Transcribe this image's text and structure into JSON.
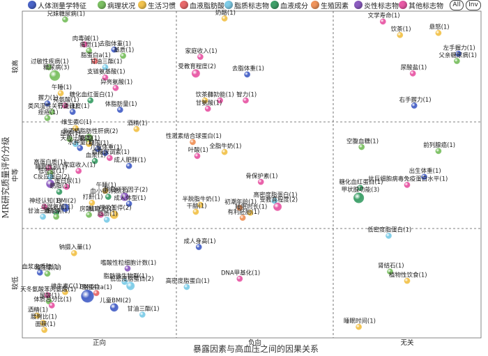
{
  "legend": {
    "items": [
      {
        "label": "人体测量学特征",
        "color": "#4a64c8"
      },
      {
        "label": "病理状况",
        "color": "#7cc063"
      },
      {
        "label": "生活习惯",
        "color": "#f2c34e"
      },
      {
        "label": "血液脂肪酸",
        "color": "#e8696b"
      },
      {
        "label": "脂质标志物",
        "color": "#7fcde8"
      },
      {
        "label": "血液成分",
        "color": "#3fa06a"
      },
      {
        "label": "生殖因素",
        "color": "#f0945c"
      },
      {
        "label": "炎性标志物",
        "color": "#8c5cc0"
      },
      {
        "label": "其他标志物",
        "color": "#e85aa6"
      }
    ],
    "all_label": "All",
    "inv_label": "Inv"
  },
  "chart_data": {
    "type": "scatter",
    "xlabel": "暴露因素与高血压之间的因果关系",
    "ylabel": "MR研究质量评价分级",
    "x_categories": [
      "正向",
      "负向",
      "无关"
    ],
    "y_categories": [
      "较高",
      "中等",
      "较低"
    ],
    "grid": "dashed",
    "points": [
      {
        "label": "兄妹糖尿病(1)",
        "group": "病理状况",
        "x": "正向",
        "y": "较高",
        "fx": 0.27,
        "fy": 0.04
      },
      {
        "label": "肉毒碱(1)",
        "group": "其他标志物",
        "x": "正向",
        "y": "较高",
        "fx": 0.4,
        "fy": 0.28
      },
      {
        "label": "痛觉(1)",
        "group": "病理状况",
        "x": "正向",
        "y": "较高",
        "fx": 0.43,
        "fy": 0.34
      },
      {
        "label": "脂蛋白a(1)",
        "group": "血液脂肪酸",
        "x": "正向",
        "y": "较高",
        "fx": 0.47,
        "fy": 0.44
      },
      {
        "label": "甘油三酯(1)",
        "group": "脂质标志物",
        "x": "正向",
        "y": "较高",
        "fx": 0.54,
        "fy": 0.5
      },
      {
        "label": "去脂体重(1)",
        "group": "人体测量学特征",
        "x": "正向",
        "y": "较高",
        "fx": 0.6,
        "fy": 0.33
      },
      {
        "label": "基质(1)",
        "group": "病理状况",
        "x": "正向",
        "y": "较高",
        "fx": 0.66,
        "fy": 0.39
      },
      {
        "label": "过敏性疾病(1)",
        "group": "病理状况",
        "x": "正向",
        "y": "较高",
        "fx": 0.16,
        "fy": 0.5
      },
      {
        "label": "糖尿病(3)",
        "group": "病理状况",
        "x": "正向",
        "y": "较高",
        "fx": 0.2,
        "fy": 0.58
      },
      {
        "label": "支链氨基酸(1)",
        "group": "其他标志物",
        "x": "正向",
        "y": "较高",
        "fx": 0.54,
        "fy": 0.6
      },
      {
        "label": "异亮氨酸(1)",
        "group": "其他标志物",
        "x": "正向",
        "y": "较高",
        "fx": 0.61,
        "fy": 0.7
      },
      {
        "label": "午睡(1)",
        "group": "生活习惯",
        "x": "正向",
        "y": "较高",
        "fx": 0.24,
        "fy": 0.75
      },
      {
        "label": "握力(1)",
        "group": "人体测量学特征",
        "x": "正向",
        "y": "较高",
        "fx": 0.15,
        "fy": 0.85
      },
      {
        "label": "亮氨酸(1)",
        "group": "其他标志物",
        "x": "正向",
        "y": "较高",
        "fx": 0.27,
        "fy": 0.87
      },
      {
        "label": "糖化血红蛋白(1)",
        "group": "血液成分",
        "x": "正向",
        "y": "较高",
        "fx": 0.44,
        "fy": 0.82
      },
      {
        "label": "类风湿性关节炎(1)",
        "group": "病理状况",
        "x": "正向",
        "y": "较高",
        "fx": 0.18,
        "fy": 0.93
      },
      {
        "label": "行走速度(1)",
        "group": "人体测量学特征",
        "x": "正向",
        "y": "较高",
        "fx": 0.32,
        "fy": 0.93
      },
      {
        "label": "体脂肪量(1)",
        "group": "人体测量学特征",
        "x": "正向",
        "y": "较高",
        "fx": 0.64,
        "fy": 0.91
      },
      {
        "label": "痤疮(1)",
        "group": "病理状况",
        "x": "正向",
        "y": "较高",
        "fx": 0.15,
        "fy": 0.99
      },
      {
        "label": "奶酪(1)",
        "group": "生活习惯",
        "x": "负向",
        "y": "较高",
        "fx": 0.3,
        "fy": 0.03
      },
      {
        "label": "家庭收入(1)",
        "group": "其他标志物",
        "x": "负向",
        "y": "较高",
        "fx": 0.14,
        "fy": 0.4
      },
      {
        "label": "受教育程度(2)",
        "group": "其他标志物",
        "x": "负向",
        "y": "较高",
        "fx": 0.11,
        "fy": 0.56
      },
      {
        "label": "去脂体重(1)",
        "group": "人体测量学特征",
        "x": "负向",
        "y": "较高",
        "fx": 0.45,
        "fy": 0.57
      },
      {
        "label": "饮茶(1)",
        "group": "生活习惯",
        "x": "负向",
        "y": "较高",
        "fx": 0.17,
        "fy": 0.82
      },
      {
        "label": "肺功能(1)",
        "group": "其他标志物",
        "x": "负向",
        "y": "较高",
        "fx": 0.27,
        "fy": 0.82
      },
      {
        "label": "智力(1)",
        "group": "其他标志物",
        "x": "负向",
        "y": "较高",
        "fx": 0.44,
        "fy": 0.82
      },
      {
        "label": "甘氨酸(1)",
        "group": "其他标志物",
        "x": "负向",
        "y": "较高",
        "fx": 0.19,
        "fy": 0.9
      },
      {
        "label": "文学寿命(1)",
        "group": "其他标志物",
        "x": "无关",
        "y": "较高",
        "fx": 0.33,
        "fy": 0.06
      },
      {
        "label": "饮茶(1)",
        "group": "生活习惯",
        "x": "无关",
        "y": "较高",
        "fx": 0.45,
        "fy": 0.19
      },
      {
        "label": "悬怒(1)",
        "group": "生活习惯",
        "x": "无关",
        "y": "较高",
        "fx": 0.72,
        "fy": 0.17
      },
      {
        "label": "左手握力(1)",
        "group": "人体测量学特征",
        "x": "无关",
        "y": "较高",
        "fx": 0.86,
        "fy": 0.37
      },
      {
        "label": "父亲糖尿病(1)",
        "group": "病理状况",
        "x": "无关",
        "y": "较高",
        "fx": 0.85,
        "fy": 0.44
      },
      {
        "label": "尿酸盐(1)",
        "group": "其他标志物",
        "x": "无关",
        "y": "较高",
        "fx": 0.54,
        "fy": 0.56
      },
      {
        "label": "右手握力(1)",
        "group": "人体测量学特征",
        "x": "无关",
        "y": "较高",
        "fx": 0.55,
        "fy": 0.87
      },
      {
        "label": "维生素C(1)",
        "group": "生活习惯",
        "x": "正向",
        "y": "中等",
        "fx": 0.34,
        "fy": 0.02
      },
      {
        "label": "酒精(1)",
        "group": "生活习惯",
        "x": "正向",
        "y": "中等",
        "fx": 0.75,
        "fy": 0.03
      },
      {
        "label": "非酒精脂肪性肝病(2)",
        "group": "病理状况",
        "x": "正向",
        "y": "中等",
        "fx": 0.43,
        "fy": 0.12
      },
      {
        "label": "尿酸(1)",
        "group": "病理状况",
        "x": "正向",
        "y": "中等",
        "fx": 0.3,
        "fy": 0.13
      },
      {
        "label": "天胆汁酸(1)",
        "group": "脂质标志物",
        "x": "正向",
        "y": "中等",
        "fx": 0.34,
        "fy": 0.18
      },
      {
        "label": "病毒(1)",
        "group": "生活习惯",
        "x": "正向",
        "y": "中等",
        "fx": 0.43,
        "fy": 0.18
      },
      {
        "label": "水肿量(1)",
        "group": "人体测量学特征",
        "x": "正向",
        "y": "中等",
        "fx": 0.37,
        "fy": 0.22
      },
      {
        "label": "腰围(1)",
        "group": "人体测量学特征",
        "x": "正向",
        "y": "中等",
        "fx": 0.49,
        "fy": 0.23
      },
      {
        "label": "儿童体重(1)",
        "group": "人体测量学特征",
        "x": "正向",
        "y": "中等",
        "fx": 0.54,
        "fy": 0.27
      },
      {
        "label": "血糖尿调素(1)",
        "group": "其他标志物",
        "x": "正向",
        "y": "中等",
        "fx": 0.57,
        "fy": 0.32
      },
      {
        "label": "血浆(1)",
        "group": "血液成分",
        "x": "正向",
        "y": "中等",
        "fx": 0.47,
        "fy": 0.35
      },
      {
        "label": "成人肥胖(1)",
        "group": "人体测量学特征",
        "x": "正向",
        "y": "中等",
        "fx": 0.7,
        "fy": 0.4
      },
      {
        "label": "家庭收入(1)",
        "group": "其他标志物",
        "x": "正向",
        "y": "中等",
        "fx": 0.36,
        "fy": 0.45
      },
      {
        "label": "高蛋白质(1)",
        "group": "其他标志物",
        "x": "正向",
        "y": "中等",
        "fx": 0.16,
        "fy": 0.42
      },
      {
        "label": "睡眠性别(1)",
        "group": "病理状况",
        "x": "正向",
        "y": "中等",
        "fx": 0.17,
        "fy": 0.47
      },
      {
        "label": "低密度(1)",
        "group": "脂质标志物",
        "x": "正向",
        "y": "中等",
        "fx": 0.17,
        "fy": 0.51
      },
      {
        "label": "C反应蛋白(2)",
        "group": "炎性标志物",
        "x": "正向",
        "y": "中等",
        "fx": 0.17,
        "fy": 0.58
      },
      {
        "label": "蛋白尿(1)",
        "group": "其他标志物",
        "x": "正向",
        "y": "中等",
        "fx": 0.28,
        "fy": 0.61
      },
      {
        "label": "鹏脂(1)",
        "group": "血液成分",
        "x": "正向",
        "y": "中等",
        "fx": 0.23,
        "fy": 0.66
      },
      {
        "label": "午睡(1)",
        "group": "生活习惯",
        "x": "正向",
        "y": "中等",
        "fx": 0.54,
        "fy": 0.65
      },
      {
        "label": "血小板计数(1)",
        "group": "血液成分",
        "x": "正向",
        "y": "中等",
        "fx": 0.56,
        "fy": 0.71
      },
      {
        "label": "肿瘤坏死因子(2)",
        "group": "炎性标志物",
        "x": "正向",
        "y": "中等",
        "fx": 0.67,
        "fy": 0.71
      },
      {
        "label": "成人体型(1)",
        "group": "人体测量学特征",
        "x": "正向",
        "y": "中等",
        "fx": 0.7,
        "fy": 0.78
      },
      {
        "label": "打鼾(1)",
        "group": "生活习惯",
        "x": "正向",
        "y": "中等",
        "fx": 0.45,
        "fy": 0.77
      },
      {
        "label": "神经认知(1)",
        "group": "其他标志物",
        "x": "正向",
        "y": "中等",
        "fx": 0.13,
        "fy": 0.81
      },
      {
        "label": "BMI(2)",
        "group": "人体测量学特征",
        "x": "正向",
        "y": "中等",
        "fx": 0.27,
        "fy": 0.82
      },
      {
        "label": "半胱氨酸(1)",
        "group": "血液成分",
        "x": "正向",
        "y": "中等",
        "fx": 0.21,
        "fy": 0.87
      },
      {
        "label": "甘油三酯(1)",
        "group": "脂质标志物",
        "x": "正向",
        "y": "中等",
        "fx": 0.12,
        "fy": 0.91
      },
      {
        "label": "糖尿病(1)",
        "group": "病理状况",
        "x": "正向",
        "y": "中等",
        "fx": 0.21,
        "fy": 0.91
      },
      {
        "label": "房颤(1)",
        "group": "病理状况",
        "x": "正向",
        "y": "中等",
        "fx": 0.43,
        "fy": 0.89
      },
      {
        "label": "脑电波(1)",
        "group": "其他标志物",
        "x": "正向",
        "y": "中等",
        "fx": 0.51,
        "fy": 0.89
      },
      {
        "label": "呼吸暂停(2)",
        "group": "生活习惯",
        "x": "正向",
        "y": "中等",
        "fx": 0.6,
        "fy": 0.89
      },
      {
        "label": "脂质(1)",
        "group": "脂质标志物",
        "x": "正向",
        "y": "中等",
        "fx": 0.55,
        "fy": 0.94
      },
      {
        "label": "性激素结合球蛋白(1)",
        "group": "生殖因素",
        "x": "负向",
        "y": "中等",
        "fx": 0.09,
        "fy": 0.16
      },
      {
        "label": "全脂牛奶(1)",
        "group": "生活习惯",
        "x": "负向",
        "y": "中等",
        "fx": 0.3,
        "fy": 0.26
      },
      {
        "label": "叶酸(1)",
        "group": "其他标志物",
        "x": "负向",
        "y": "中等",
        "fx": 0.12,
        "fy": 0.3
      },
      {
        "label": "骨保护素(1)",
        "group": "其他标志物",
        "x": "负向",
        "y": "中等",
        "fx": 0.54,
        "fy": 0.56
      },
      {
        "label": "高密度脂蛋白(1)",
        "group": "脂质标志物",
        "x": "负向",
        "y": "中等",
        "fx": 0.63,
        "fy": 0.75
      },
      {
        "label": "受教育程度(2)",
        "group": "其他标志物",
        "x": "负向",
        "y": "中等",
        "fx": 0.65,
        "fy": 0.81
      },
      {
        "label": "半脱脂牛奶(1)",
        "group": "生活习惯",
        "x": "负向",
        "y": "中等",
        "fx": 0.14,
        "fy": 0.79
      },
      {
        "label": "干酪(1)",
        "group": "生活习惯",
        "x": "负向",
        "y": "中等",
        "fx": 0.11,
        "fy": 0.86
      },
      {
        "label": "初潮年龄(1)",
        "group": "生殖因素",
        "x": "负向",
        "y": "中等",
        "fx": 0.4,
        "fy": 0.82
      },
      {
        "label": "睡眠时长(1)",
        "group": "生活习惯",
        "x": "负向",
        "y": "中等",
        "fx": 0.47,
        "fy": 0.87
      },
      {
        "label": "有利胚胎(1)",
        "group": "生殖因素",
        "x": "负向",
        "y": "中等",
        "fx": 0.42,
        "fy": 0.92
      },
      {
        "label": "空腹血糖(1)",
        "group": "病理状况",
        "x": "无关",
        "y": "中等",
        "fx": 0.18,
        "fy": 0.21
      },
      {
        "label": "前列腺癌(1)",
        "group": "病理状况",
        "x": "无关",
        "y": "中等",
        "fx": 0.72,
        "fy": 0.25
      },
      {
        "label": "出生体重(1)",
        "group": "人体测量学特征",
        "x": "无关",
        "y": "中等",
        "fx": 0.62,
        "fy": 0.51
      },
      {
        "label": "抗巨细胞病毒免疫蛋白水平(1)",
        "group": "其他标志物",
        "x": "无关",
        "y": "中等",
        "fx": 0.5,
        "fy": 0.59
      },
      {
        "label": "糖化血红蛋白(1)",
        "group": "血液成分",
        "x": "无关",
        "y": "中等",
        "fx": 0.17,
        "fy": 0.62
      },
      {
        "label": "甲状腺功能(3)",
        "group": "血液成分",
        "x": "无关",
        "y": "中等",
        "fx": 0.16,
        "fy": 0.72
      },
      {
        "label": "钠摄入量(1)",
        "group": "生活习惯",
        "x": "正向",
        "y": "较低",
        "fx": 0.33,
        "fy": 0.2
      },
      {
        "label": "血浆皮质醇(1)",
        "group": "人体测量学特征",
        "x": "正向",
        "y": "较低",
        "fx": 0.1,
        "fy": 0.39
      },
      {
        "label": "维生素(1)",
        "group": "病理状况",
        "x": "正向",
        "y": "较低",
        "fx": 0.15,
        "fy": 0.4
      },
      {
        "label": "嗜酸性粒细胞计数(1)",
        "group": "炎性标志物",
        "x": "正向",
        "y": "较低",
        "fx": 0.69,
        "fy": 0.35
      },
      {
        "label": "脂肪微生物群(1)",
        "group": "脂质标志物",
        "x": "正向",
        "y": "较低",
        "fx": 0.67,
        "fy": 0.48
      },
      {
        "label": "低密度脂蛋白(2)",
        "group": "脂质标志物",
        "x": "正向",
        "y": "较低",
        "fx": 0.71,
        "fy": 0.52
      },
      {
        "label": "维生素C(1)",
        "group": "生活习惯",
        "x": "正向",
        "y": "较低",
        "fx": 0.27,
        "fy": 0.58
      },
      {
        "label": "BMI(4)",
        "group": "人体测量学特征",
        "x": "正向",
        "y": "较低",
        "fx": 0.42,
        "fy": 0.62
      },
      {
        "label": "脂蛋白a(1)",
        "group": "血液脂肪酸",
        "x": "正向",
        "y": "较低",
        "fx": 0.48,
        "fy": 0.59
      },
      {
        "label": "天冬氨酸苯丙氨酸(1)",
        "group": "其他标志物",
        "x": "正向",
        "y": "较低",
        "fx": 0.15,
        "fy": 0.61
      },
      {
        "label": "尿酸(1)",
        "group": "病理状况",
        "x": "正向",
        "y": "较低",
        "fx": 0.16,
        "fy": 0.67
      },
      {
        "label": "体质总分比(1)",
        "group": "其他标志物",
        "x": "正向",
        "y": "较低",
        "fx": 0.18,
        "fy": 0.71
      },
      {
        "label": "儿童BMI(2)",
        "group": "人体测量学特征",
        "x": "正向",
        "y": "较低",
        "fx": 0.6,
        "fy": 0.73
      },
      {
        "label": "甘油三酯(1)",
        "group": "脂质标志物",
        "x": "正向",
        "y": "较低",
        "fx": 0.79,
        "fy": 0.8
      },
      {
        "label": "酒精(1)",
        "group": "生活习惯",
        "x": "正向",
        "y": "较低",
        "fx": 0.08,
        "fy": 0.81
      },
      {
        "label": "腰臀比(1)",
        "group": "生活习惯",
        "x": "正向",
        "y": "较低",
        "fx": 0.12,
        "fy": 0.88
      },
      {
        "label": "面膜(1)",
        "group": "生活习惯",
        "x": "正向",
        "y": "较低",
        "fx": 0.13,
        "fy": 0.95
      },
      {
        "label": "成人身高(1)",
        "group": "人体测量学特征",
        "x": "负向",
        "y": "较低",
        "fx": 0.13,
        "fy": 0.14
      },
      {
        "label": "DNA甲基化(1)",
        "group": "其他标志物",
        "x": "负向",
        "y": "较低",
        "fx": 0.4,
        "fy": 0.45
      },
      {
        "label": "高密度脂蛋白(1)",
        "group": "脂质标志物",
        "x": "负向",
        "y": "较低",
        "fx": 0.05,
        "fy": 0.53
      },
      {
        "label": "低密度脂蛋白(1)",
        "group": "脂质标志物",
        "x": "无关",
        "y": "较低",
        "fx": 0.37,
        "fy": 0.03
      },
      {
        "label": "肾结石(1)",
        "group": "病理状况",
        "x": "无关",
        "y": "较低",
        "fx": 0.38,
        "fy": 0.38
      },
      {
        "label": "植物性饮食(1)",
        "group": "生活习惯",
        "x": "无关",
        "y": "较低",
        "fx": 0.5,
        "fy": 0.47
      },
      {
        "label": "睡眠时间(1)",
        "group": "生活习惯",
        "x": "无关",
        "y": "较低",
        "fx": 0.16,
        "fy": 0.92
      }
    ]
  }
}
